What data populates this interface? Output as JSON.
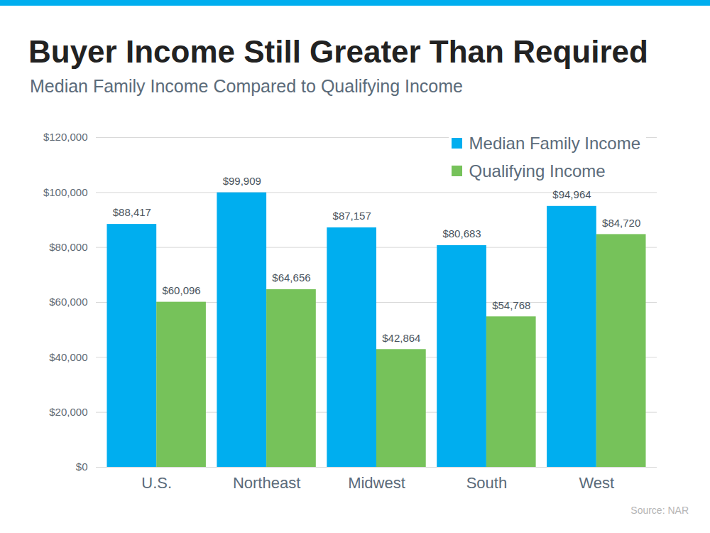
{
  "chart_data": {
    "type": "bar",
    "title": "Buyer Income Still Greater Than Required",
    "subtitle": "Median Family Income Compared to Qualifying Income",
    "source": "Source: NAR",
    "categories": [
      "U.S.",
      "Northeast",
      "Midwest",
      "South",
      "West"
    ],
    "series": [
      {
        "name": "Median Family Income",
        "color": "#00aeef",
        "values": [
          88417,
          99909,
          87157,
          80683,
          94964
        ],
        "value_labels": [
          "$88,417",
          "$99,909",
          "$87,157",
          "$80,683",
          "$94,964"
        ]
      },
      {
        "name": "Qualifying Income",
        "color": "#76c25a",
        "values": [
          60096,
          64656,
          42864,
          54768,
          84720
        ],
        "value_labels": [
          "$60,096",
          "$64,656",
          "$42,864",
          "$54,768",
          "$84,720"
        ]
      }
    ],
    "ylim": [
      0,
      120000
    ],
    "yticks": [
      {
        "value": 0,
        "label": "$0"
      },
      {
        "value": 20000,
        "label": "$20,000"
      },
      {
        "value": 40000,
        "label": "$40,000"
      },
      {
        "value": 60000,
        "label": "$60,000"
      },
      {
        "value": 80000,
        "label": "$80,000"
      },
      {
        "value": 100000,
        "label": "$100,000"
      },
      {
        "value": 120000,
        "label": "$120,000"
      }
    ],
    "grid": true,
    "legend": "top-right",
    "data_labels": true
  }
}
